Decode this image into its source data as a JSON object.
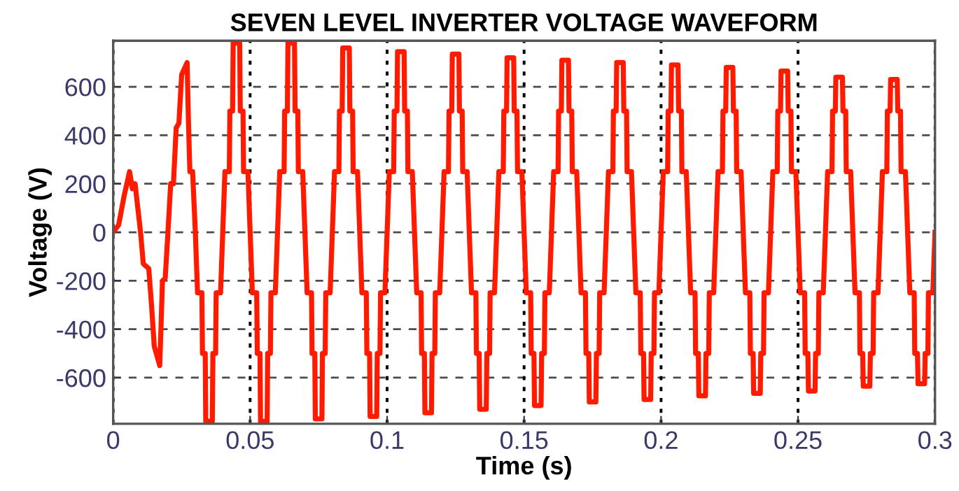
{
  "chart_data": {
    "type": "line",
    "title": "SEVEN LEVEL INVERTER VOLTAGE WAVEFORM",
    "xlabel": "Time (s)",
    "ylabel": "Voltage (V)",
    "xlim": [
      0,
      0.3
    ],
    "xticks": [
      0,
      0.05,
      0.1,
      0.15,
      0.2,
      0.25,
      0.3
    ],
    "ylim": [
      -790,
      790
    ],
    "yticks": [
      -600,
      -400,
      -200,
      0,
      200,
      400,
      600
    ],
    "grid": true,
    "legend": false,
    "marker": "none",
    "line_style": "solid",
    "series": [
      {
        "color": "#ff1a00",
        "x": [
          0,
          0.002,
          0.004,
          0.006,
          0.007,
          0.008,
          0.009,
          0.01,
          0.011,
          0.013,
          0.014,
          0.015,
          0.017,
          0.0175,
          0.018,
          0.019,
          0.02,
          0.021,
          0.022,
          0.023,
          0.024,
          0.025,
          0.027,
          0.0275,
          0.028,
          0.029,
          0.03,
          0.0308,
          0.0324,
          0.0326,
          0.0336,
          0.0338,
          0.0362,
          0.0364,
          0.0374,
          0.0376,
          0.0392,
          0.04,
          0.0408,
          0.0424,
          0.0426,
          0.0436,
          0.0438,
          0.0462,
          0.0464,
          0.0474,
          0.0476,
          0.0492,
          0.05,
          0.0508,
          0.0524,
          0.0526,
          0.0536,
          0.0538,
          0.0562,
          0.0564,
          0.0574,
          0.0576,
          0.0592,
          0.06,
          0.0608,
          0.0624,
          0.0626,
          0.0636,
          0.0638,
          0.0662,
          0.0664,
          0.0674,
          0.0676,
          0.0692,
          0.07,
          0.0708,
          0.0724,
          0.0726,
          0.0736,
          0.0738,
          0.0762,
          0.0764,
          0.0774,
          0.0776,
          0.0792,
          0.08,
          0.0808,
          0.0824,
          0.0826,
          0.0836,
          0.0838,
          0.0862,
          0.0864,
          0.0874,
          0.0876,
          0.0892,
          0.09,
          0.0908,
          0.0924,
          0.0926,
          0.0936,
          0.0938,
          0.0962,
          0.0964,
          0.0974,
          0.0976,
          0.0992,
          0.1,
          0.1008,
          0.1024,
          0.1026,
          0.1036,
          0.1038,
          0.1062,
          0.1064,
          0.1074,
          0.1076,
          0.1092,
          0.11,
          0.1108,
          0.1124,
          0.1126,
          0.1136,
          0.1138,
          0.1162,
          0.1164,
          0.1174,
          0.1176,
          0.1192,
          0.12,
          0.1208,
          0.1224,
          0.1226,
          0.1236,
          0.1238,
          0.1262,
          0.1264,
          0.1274,
          0.1276,
          0.1292,
          0.13,
          0.1308,
          0.1324,
          0.1326,
          0.1336,
          0.1338,
          0.1362,
          0.1364,
          0.1374,
          0.1376,
          0.1392,
          0.14,
          0.1408,
          0.1424,
          0.1426,
          0.1436,
          0.1438,
          0.1462,
          0.1464,
          0.1474,
          0.1476,
          0.1492,
          0.15,
          0.1508,
          0.1524,
          0.1526,
          0.1536,
          0.1538,
          0.1562,
          0.1564,
          0.1574,
          0.1576,
          0.1592,
          0.16,
          0.1608,
          0.1624,
          0.1626,
          0.1636,
          0.1638,
          0.1662,
          0.1664,
          0.1674,
          0.1676,
          0.1692,
          0.17,
          0.1708,
          0.1724,
          0.1726,
          0.1736,
          0.1738,
          0.1762,
          0.1764,
          0.1774,
          0.1776,
          0.1792,
          0.18,
          0.1808,
          0.1824,
          0.1826,
          0.1836,
          0.1838,
          0.1862,
          0.1864,
          0.1874,
          0.1876,
          0.1892,
          0.19,
          0.1908,
          0.1924,
          0.1926,
          0.1936,
          0.1938,
          0.1962,
          0.1964,
          0.1974,
          0.1976,
          0.1992,
          0.2,
          0.2008,
          0.2024,
          0.2026,
          0.2036,
          0.2038,
          0.2062,
          0.2064,
          0.2074,
          0.2076,
          0.2092,
          0.21,
          0.2108,
          0.2124,
          0.2126,
          0.2136,
          0.2138,
          0.2162,
          0.2164,
          0.2174,
          0.2176,
          0.2192,
          0.22,
          0.2208,
          0.2224,
          0.2226,
          0.2236,
          0.2238,
          0.2262,
          0.2264,
          0.2274,
          0.2276,
          0.2292,
          0.23,
          0.2308,
          0.2324,
          0.2326,
          0.2336,
          0.2338,
          0.2362,
          0.2364,
          0.2374,
          0.2376,
          0.2392,
          0.24,
          0.2408,
          0.2424,
          0.2426,
          0.2436,
          0.2438,
          0.2462,
          0.2464,
          0.2474,
          0.2476,
          0.2492,
          0.25,
          0.2508,
          0.2524,
          0.2526,
          0.2536,
          0.2538,
          0.2562,
          0.2564,
          0.2574,
          0.2576,
          0.2592,
          0.26,
          0.2608,
          0.2624,
          0.2626,
          0.2636,
          0.2638,
          0.2662,
          0.2664,
          0.2674,
          0.2676,
          0.2692,
          0.27,
          0.2708,
          0.2724,
          0.2726,
          0.2736,
          0.2738,
          0.2762,
          0.2764,
          0.2774,
          0.2776,
          0.2792,
          0.28,
          0.2808,
          0.2824,
          0.2826,
          0.2836,
          0.2838,
          0.2862,
          0.2864,
          0.2874,
          0.2876,
          0.2892,
          0.29,
          0.2908,
          0.2924,
          0.2926,
          0.2936,
          0.2938,
          0.2962,
          0.2964,
          0.2974,
          0.2976,
          0.2992,
          0.3
        ],
        "values": [
          0,
          30,
          150,
          250,
          180,
          200,
          100,
          0,
          -130,
          -150,
          -300,
          -470,
          -550,
          -380,
          -200,
          -190,
          0,
          200,
          200,
          430,
          450,
          650,
          700,
          450,
          250,
          250,
          0,
          -250,
          -250,
          -500,
          -500,
          -780,
          -780,
          -500,
          -500,
          -250,
          -250,
          0,
          250,
          250,
          500,
          500,
          780,
          780,
          500,
          500,
          250,
          250,
          0,
          -250,
          -250,
          -500,
          -500,
          -780,
          -780,
          -500,
          -500,
          -250,
          -250,
          0,
          250,
          250,
          500,
          500,
          780,
          780,
          500,
          500,
          250,
          250,
          0,
          -250,
          -250,
          -500,
          -500,
          -770,
          -770,
          -500,
          -500,
          -250,
          -250,
          0,
          250,
          250,
          500,
          500,
          760,
          760,
          500,
          500,
          250,
          250,
          0,
          -250,
          -250,
          -500,
          -500,
          -760,
          -760,
          -500,
          -500,
          -250,
          -250,
          0,
          250,
          250,
          500,
          500,
          745,
          745,
          500,
          500,
          250,
          250,
          0,
          -250,
          -250,
          -500,
          -500,
          -745,
          -745,
          -500,
          -500,
          -250,
          -250,
          0,
          250,
          250,
          500,
          500,
          735,
          735,
          500,
          500,
          250,
          250,
          0,
          -250,
          -250,
          -500,
          -500,
          -730,
          -730,
          -500,
          -500,
          -250,
          -250,
          0,
          250,
          250,
          500,
          500,
          720,
          720,
          500,
          500,
          250,
          250,
          0,
          -250,
          -250,
          -500,
          -500,
          -715,
          -715,
          -500,
          -500,
          -250,
          -250,
          0,
          250,
          250,
          500,
          500,
          710,
          710,
          500,
          500,
          250,
          250,
          0,
          -250,
          -250,
          -500,
          -500,
          -700,
          -700,
          -500,
          -500,
          -250,
          -250,
          0,
          250,
          250,
          500,
          500,
          700,
          700,
          500,
          500,
          250,
          250,
          0,
          -250,
          -250,
          -500,
          -500,
          -690,
          -690,
          -500,
          -500,
          -250,
          -250,
          0,
          250,
          250,
          500,
          500,
          690,
          690,
          500,
          500,
          250,
          250,
          0,
          -250,
          -250,
          -500,
          -500,
          -675,
          -675,
          -500,
          -500,
          -250,
          -250,
          0,
          250,
          250,
          500,
          500,
          680,
          680,
          500,
          500,
          250,
          250,
          0,
          -250,
          -250,
          -500,
          -500,
          -665,
          -665,
          -500,
          -500,
          -250,
          -250,
          0,
          250,
          250,
          500,
          500,
          665,
          665,
          500,
          500,
          250,
          250,
          0,
          -250,
          -250,
          -500,
          -500,
          -655,
          -655,
          -500,
          -500,
          -250,
          -250,
          0,
          250,
          250,
          500,
          500,
          640,
          640,
          500,
          500,
          250,
          250,
          0,
          -250,
          -250,
          -500,
          -500,
          -635,
          -635,
          -500,
          -500,
          -250,
          -250,
          0,
          250,
          250,
          500,
          500,
          630,
          630,
          500,
          500,
          250,
          250,
          0,
          -250,
          -250,
          -500,
          -500,
          -625,
          -625,
          -500,
          -500,
          -250,
          -250,
          0
        ]
      }
    ]
  }
}
